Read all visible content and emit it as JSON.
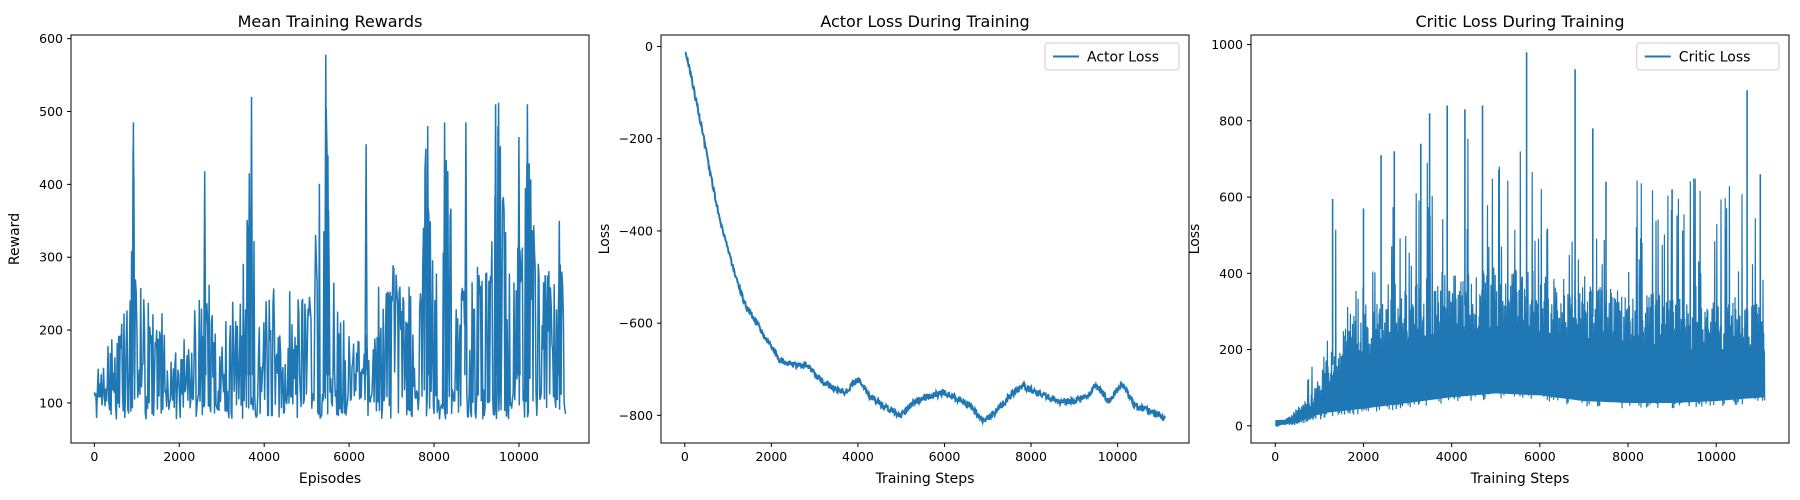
{
  "figure": {
    "background": "#ffffff",
    "line_color": "#1f77b4"
  },
  "chart_data": [
    {
      "type": "line",
      "title": "Mean Training Rewards",
      "xlabel": "Episodes",
      "ylabel": "Reward",
      "xlim": [
        -550,
        11650
      ],
      "ylim": [
        45,
        605
      ],
      "xticks": [
        0,
        2000,
        4000,
        6000,
        8000,
        10000
      ],
      "yticks": [
        100,
        200,
        300,
        400,
        500,
        600
      ],
      "grid": false,
      "legend": null,
      "series": [
        {
          "style": "spiky",
          "points": [
            [
              0,
              110
            ],
            [
              300,
              180
            ],
            [
              600,
              200
            ],
            [
              850,
              260
            ],
            [
              920,
              485
            ],
            [
              1000,
              210
            ],
            [
              1300,
              240
            ],
            [
              1500,
              230
            ],
            [
              1800,
              165
            ],
            [
              2100,
              150
            ],
            [
              2400,
              230
            ],
            [
              2600,
              290
            ],
            [
              2800,
              200
            ],
            [
              3100,
              190
            ],
            [
              3400,
              240
            ],
            [
              3650,
              415
            ],
            [
              3700,
              520
            ],
            [
              3800,
              220
            ],
            [
              4000,
              190
            ],
            [
              4200,
              230
            ],
            [
              4400,
              185
            ],
            [
              4700,
              230
            ],
            [
              5000,
              270
            ],
            [
              5200,
              300
            ],
            [
              5450,
              575
            ],
            [
              5500,
              420
            ],
            [
              5700,
              250
            ],
            [
              6000,
              200
            ],
            [
              6300,
              195
            ],
            [
              6600,
              220
            ],
            [
              6900,
              260
            ],
            [
              7100,
              255
            ],
            [
              7400,
              270
            ],
            [
              7700,
              270
            ],
            [
              7800,
              480
            ],
            [
              8000,
              280
            ],
            [
              8200,
              300
            ],
            [
              8300,
              480
            ],
            [
              8500,
              270
            ],
            [
              8800,
              260
            ],
            [
              9100,
              290
            ],
            [
              9400,
              330
            ],
            [
              9500,
              510
            ],
            [
              9800,
              290
            ],
            [
              10100,
              330
            ],
            [
              10200,
              505
            ],
            [
              10400,
              310
            ],
            [
              10700,
              290
            ],
            [
              10900,
              250
            ],
            [
              11000,
              340
            ],
            [
              11100,
              140
            ]
          ],
          "floor": 78,
          "spikes": [
            [
              920,
              485
            ],
            [
              2600,
              418
            ],
            [
              3650,
              415
            ],
            [
              3700,
              520
            ],
            [
              5450,
              578
            ],
            [
              5500,
              440
            ],
            [
              6400,
              455
            ],
            [
              7850,
              480
            ],
            [
              8250,
              485
            ],
            [
              8750,
              485
            ],
            [
              9450,
              510
            ],
            [
              9520,
              512
            ],
            [
              10000,
              465
            ],
            [
              10200,
              510
            ],
            [
              10950,
              350
            ]
          ],
          "last_value": 85
        }
      ]
    },
    {
      "type": "line",
      "title": "Actor Loss During Training",
      "xlabel": "Training Steps",
      "ylabel": "Loss",
      "xlim": [
        -550,
        11650
      ],
      "ylim": [
        -860,
        25
      ],
      "xticks": [
        0,
        2000,
        4000,
        6000,
        8000,
        10000
      ],
      "yticks": [
        0,
        -200,
        -400,
        -600,
        -800
      ],
      "ytick_labels": [
        "0",
        "−200",
        "−400",
        "−600",
        "−800"
      ],
      "grid": false,
      "legend": "upper right",
      "series": [
        {
          "name": "Actor Loss",
          "style": "line",
          "points": [
            [
              0,
              -10
            ],
            [
              100,
              -40
            ],
            [
              200,
              -90
            ],
            [
              400,
              -180
            ],
            [
              600,
              -280
            ],
            [
              800,
              -370
            ],
            [
              1000,
              -440
            ],
            [
              1200,
              -510
            ],
            [
              1400,
              -560
            ],
            [
              1600,
              -590
            ],
            [
              1800,
              -620
            ],
            [
              2000,
              -650
            ],
            [
              2200,
              -680
            ],
            [
              2500,
              -690
            ],
            [
              2800,
              -690
            ],
            [
              3100,
              -720
            ],
            [
              3400,
              -740
            ],
            [
              3700,
              -750
            ],
            [
              4000,
              -720
            ],
            [
              4300,
              -760
            ],
            [
              4600,
              -780
            ],
            [
              5000,
              -800
            ],
            [
              5300,
              -770
            ],
            [
              5600,
              -760
            ],
            [
              6000,
              -750
            ],
            [
              6300,
              -765
            ],
            [
              6600,
              -780
            ],
            [
              6900,
              -815
            ],
            [
              7200,
              -790
            ],
            [
              7500,
              -760
            ],
            [
              7800,
              -735
            ],
            [
              8100,
              -750
            ],
            [
              8400,
              -760
            ],
            [
              8700,
              -770
            ],
            [
              9000,
              -770
            ],
            [
              9300,
              -760
            ],
            [
              9500,
              -735
            ],
            [
              9800,
              -770
            ],
            [
              10100,
              -730
            ],
            [
              10400,
              -780
            ],
            [
              10700,
              -790
            ],
            [
              11000,
              -800
            ],
            [
              11100,
              -810
            ]
          ]
        }
      ]
    },
    {
      "type": "line",
      "title": "Critic Loss During Training",
      "xlabel": "Training Steps",
      "ylabel": "Loss",
      "xlim": [
        -550,
        11650
      ],
      "ylim": [
        -45,
        1025
      ],
      "xticks": [
        0,
        2000,
        4000,
        6000,
        8000,
        10000
      ],
      "yticks": [
        0,
        200,
        400,
        600,
        800,
        1000
      ],
      "grid": false,
      "legend": "upper right",
      "series": [
        {
          "name": "Critic Loss",
          "style": "band",
          "upper": [
            [
              0,
              0
            ],
            [
              400,
              30
            ],
            [
              800,
              160
            ],
            [
              1200,
              260
            ],
            [
              1300,
              590
            ],
            [
              1500,
              380
            ],
            [
              2000,
              440
            ],
            [
              2500,
              560
            ],
            [
              3000,
              600
            ],
            [
              3500,
              700
            ],
            [
              4000,
              620
            ],
            [
              4500,
              800
            ],
            [
              5000,
              640
            ],
            [
              5700,
              980
            ],
            [
              6000,
              640
            ],
            [
              6500,
              720
            ],
            [
              7000,
              700
            ],
            [
              7500,
              640
            ],
            [
              8000,
              660
            ],
            [
              8500,
              620
            ],
            [
              9000,
              600
            ],
            [
              9500,
              650
            ],
            [
              10000,
              600
            ],
            [
              10700,
              880
            ],
            [
              11000,
              660
            ],
            [
              11100,
              320
            ]
          ],
          "lower": [
            [
              0,
              0
            ],
            [
              400,
              2
            ],
            [
              800,
              10
            ],
            [
              1200,
              20
            ],
            [
              2000,
              30
            ],
            [
              3000,
              45
            ],
            [
              4000,
              60
            ],
            [
              5000,
              70
            ],
            [
              6000,
              65
            ],
            [
              7000,
              50
            ],
            [
              8000,
              45
            ],
            [
              9000,
              45
            ],
            [
              10000,
              50
            ],
            [
              11100,
              60
            ]
          ],
          "core_upper": [
            [
              0,
              0
            ],
            [
              800,
              60
            ],
            [
              1500,
              200
            ],
            [
              2500,
              260
            ],
            [
              3500,
              300
            ],
            [
              4500,
              320
            ],
            [
              5500,
              320
            ],
            [
              6500,
              300
            ],
            [
              7500,
              280
            ],
            [
              8500,
              270
            ],
            [
              9500,
              250
            ],
            [
              10500,
              250
            ],
            [
              11100,
              250
            ]
          ],
          "spikes": [
            [
              1300,
              595
            ],
            [
              2000,
              570
            ],
            [
              2400,
              710
            ],
            [
              2700,
              720
            ],
            [
              3300,
              740
            ],
            [
              3500,
              820
            ],
            [
              3900,
              840
            ],
            [
              4300,
              830
            ],
            [
              4700,
              840
            ],
            [
              5700,
              980
            ],
            [
              6800,
              935
            ],
            [
              7200,
              780
            ],
            [
              7500,
              640
            ],
            [
              9000,
              620
            ],
            [
              10700,
              880
            ],
            [
              11000,
              660
            ]
          ]
        }
      ]
    }
  ]
}
